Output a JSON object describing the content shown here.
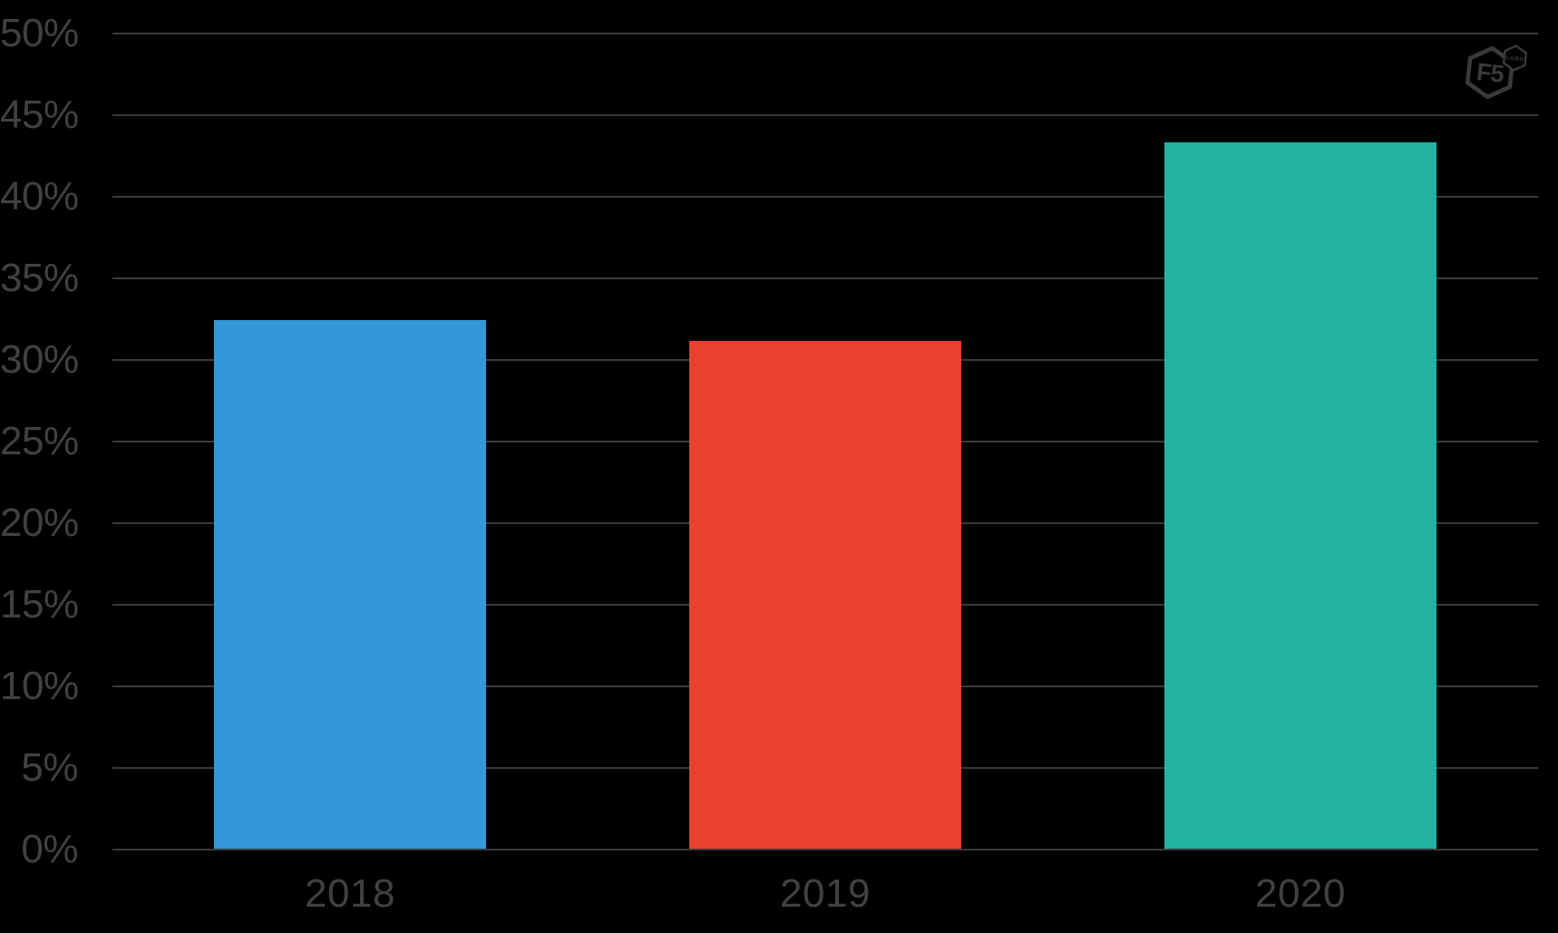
{
  "chart_data": {
    "type": "bar",
    "title": "",
    "xlabel": "",
    "ylabel": "",
    "categories": [
      "2018",
      "2019",
      "2020"
    ],
    "values": [
      32.4,
      31.1,
      43.3
    ],
    "bar_colors": [
      "#3498d8",
      "#e8412f",
      "#21b2a1"
    ],
    "ylim": [
      0,
      50
    ],
    "ytick_step": 5,
    "ytick_labels": [
      "0%",
      "5%",
      "10%",
      "15%",
      "20%",
      "25%",
      "30%",
      "35%",
      "40%",
      "45%",
      "50%"
    ],
    "grid": true,
    "legend": false,
    "colors": {
      "background": "#000000",
      "gridline": "#3a3a3a",
      "tick_text": "#414141"
    }
  },
  "branding": {
    "logo_icon": "f5-labs-logo",
    "logo_main_text": "F5",
    "logo_sub_text": "LABS",
    "logo_color": "#3a3a3a"
  }
}
